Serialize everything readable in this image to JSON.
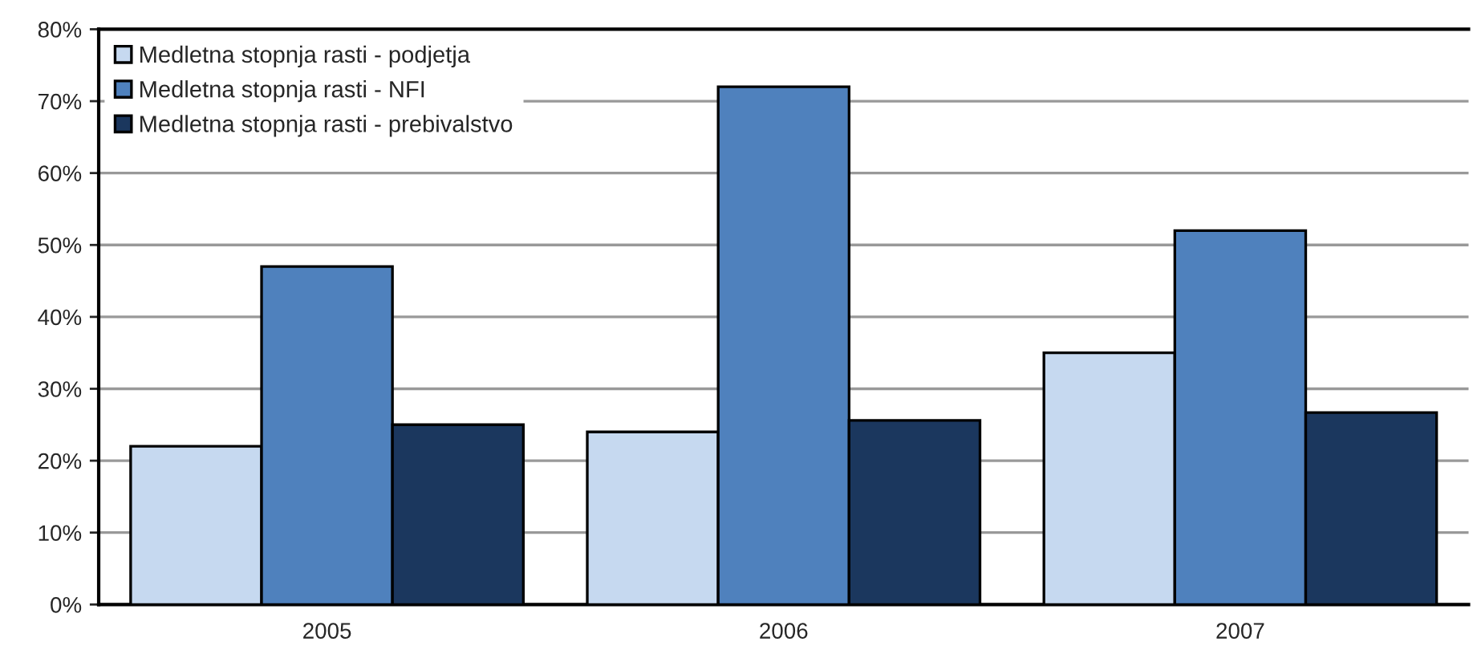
{
  "chart_data": {
    "type": "bar",
    "categories": [
      "2005",
      "2006",
      "2007"
    ],
    "series": [
      {
        "name": "Medletna stopnja rasti - podjetja",
        "color": "#c6d9f0",
        "values": [
          22,
          24,
          35
        ]
      },
      {
        "name": "Medletna stopnja rasti - NFI",
        "color": "#4f81bd",
        "values": [
          47,
          72,
          52
        ]
      },
      {
        "name": "Medletna stopnja rasti - prebivalstvo",
        "color": "#1b375e",
        "values": [
          25,
          25.6,
          26.7
        ]
      }
    ],
    "ylim": [
      0,
      80
    ],
    "yticks": [
      {
        "value": 0,
        "label": "0%"
      },
      {
        "value": 10,
        "label": "10%"
      },
      {
        "value": 20,
        "label": "20%"
      },
      {
        "value": 30,
        "label": "30%"
      },
      {
        "value": 40,
        "label": "40%"
      },
      {
        "value": 50,
        "label": "50%"
      },
      {
        "value": 60,
        "label": "60%"
      },
      {
        "value": 70,
        "label": "70%"
      },
      {
        "value": 80,
        "label": "80%"
      }
    ],
    "grid": "y",
    "legend": "top left"
  }
}
